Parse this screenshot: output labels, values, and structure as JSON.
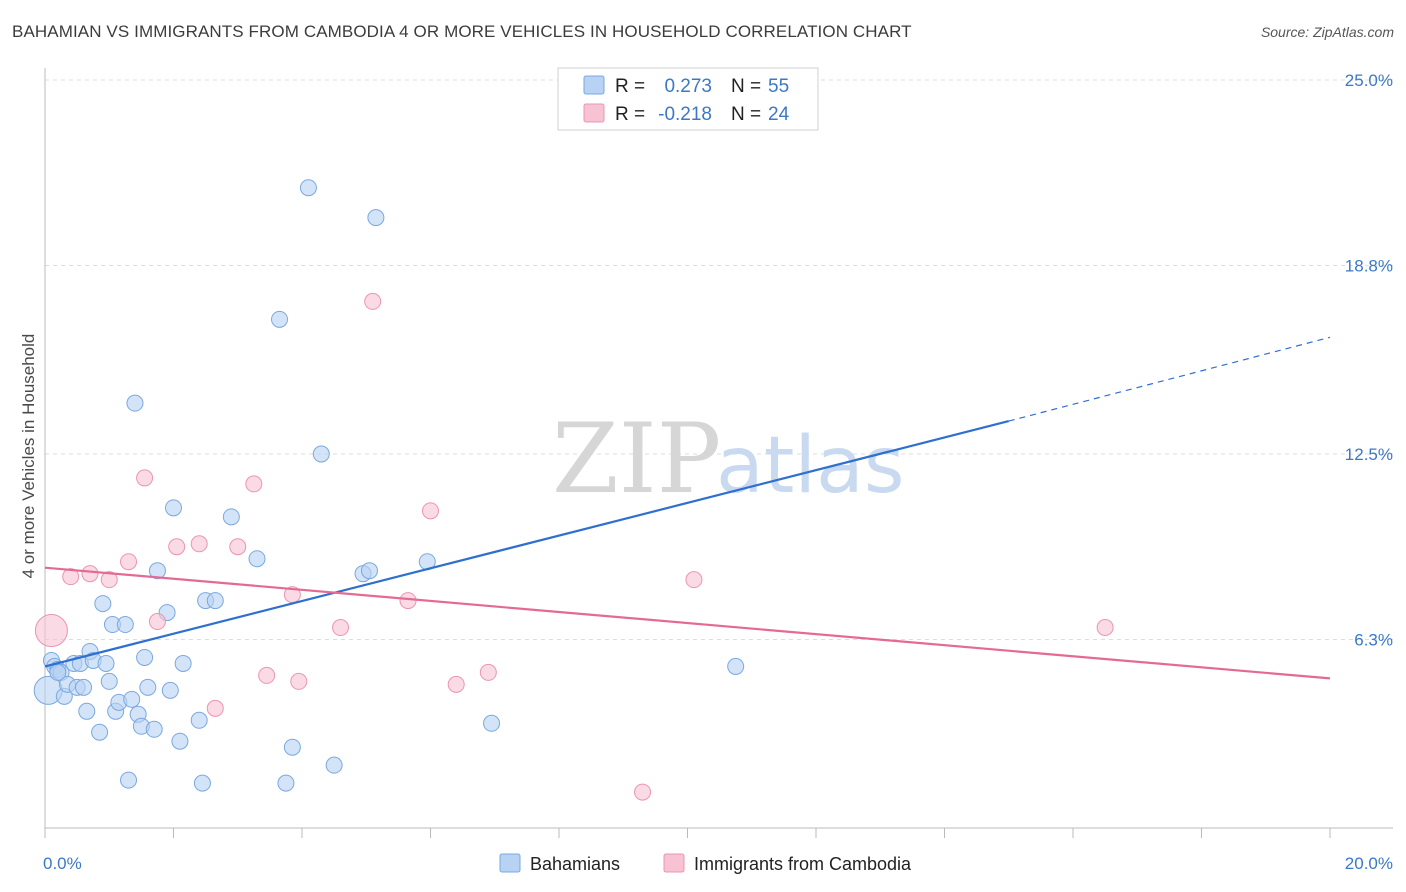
{
  "title": "BAHAMIAN VS IMMIGRANTS FROM CAMBODIA 4 OR MORE VEHICLES IN HOUSEHOLD CORRELATION CHART",
  "source": "Source: ZipAtlas.com",
  "watermark": {
    "zip": "ZIP",
    "atlas": "atlas"
  },
  "colors": {
    "blue_fill": "#b8d2f3",
    "blue_stroke": "#7aa8df",
    "blue_line": "#2f6fcf",
    "pink_fill": "#f7c3d3",
    "pink_stroke": "#ec94b1",
    "pink_line": "#e46a95",
    "tick_text": "#3b78c8",
    "grid": "#dddddd"
  },
  "chart_data": {
    "type": "scatter",
    "xlabel": "",
    "ylabel": "4 or more Vehicles in Household",
    "xlim": [
      0,
      20
    ],
    "ylim": [
      0,
      25
    ],
    "x_tick_labels": [
      {
        "value": 0,
        "label": "0.0%"
      },
      {
        "value": 20,
        "label": "20.0%"
      }
    ],
    "y_tick_labels": [
      {
        "value": 6.3,
        "label": "6.3%"
      },
      {
        "value": 12.5,
        "label": "12.5%"
      },
      {
        "value": 18.8,
        "label": "18.8%"
      },
      {
        "value": 25.0,
        "label": "25.0%"
      }
    ],
    "legend": {
      "r_label": "R =",
      "n_label": "N =",
      "entries": [
        {
          "name": "Bahamians",
          "r": "0.273",
          "n": "55"
        },
        {
          "name": "Immigrants from Cambodia",
          "r": "-0.218",
          "n": "24"
        }
      ]
    },
    "series": [
      {
        "name": "Bahamians",
        "color_key": "blue",
        "points": [
          [
            0.05,
            4.6,
            14
          ],
          [
            0.1,
            5.6,
            8
          ],
          [
            0.15,
            5.4,
            8
          ],
          [
            0.2,
            5.3,
            8
          ],
          [
            0.25,
            5.2,
            8
          ],
          [
            0.3,
            4.4,
            8
          ],
          [
            0.35,
            4.8,
            8
          ],
          [
            0.45,
            5.5,
            8
          ],
          [
            0.5,
            4.7,
            8
          ],
          [
            0.55,
            5.5,
            8
          ],
          [
            0.6,
            4.7,
            8
          ],
          [
            0.65,
            3.9,
            8
          ],
          [
            0.7,
            5.9,
            8
          ],
          [
            0.75,
            5.6,
            8
          ],
          [
            0.85,
            3.2,
            8
          ],
          [
            0.9,
            7.5,
            8
          ],
          [
            0.95,
            5.5,
            8
          ],
          [
            1.0,
            4.9,
            8
          ],
          [
            1.05,
            6.8,
            8
          ],
          [
            1.1,
            3.9,
            8
          ],
          [
            1.15,
            4.2,
            8
          ],
          [
            1.25,
            6.8,
            8
          ],
          [
            1.3,
            1.6,
            8
          ],
          [
            1.35,
            4.3,
            8
          ],
          [
            1.4,
            14.2,
            8
          ],
          [
            1.45,
            3.8,
            8
          ],
          [
            1.5,
            3.4,
            8
          ],
          [
            1.55,
            5.7,
            8
          ],
          [
            1.6,
            4.7,
            8
          ],
          [
            1.7,
            3.3,
            8
          ],
          [
            1.75,
            8.6,
            8
          ],
          [
            1.9,
            7.2,
            8
          ],
          [
            1.95,
            4.6,
            8
          ],
          [
            2.0,
            10.7,
            8
          ],
          [
            2.1,
            2.9,
            8
          ],
          [
            2.15,
            5.5,
            8
          ],
          [
            2.4,
            3.6,
            8
          ],
          [
            2.45,
            1.5,
            8
          ],
          [
            2.5,
            7.6,
            8
          ],
          [
            2.65,
            7.6,
            8
          ],
          [
            2.9,
            10.4,
            8
          ],
          [
            3.3,
            9.0,
            8
          ],
          [
            3.65,
            17.0,
            8
          ],
          [
            3.75,
            1.5,
            8
          ],
          [
            3.85,
            2.7,
            8
          ],
          [
            4.1,
            21.4,
            8
          ],
          [
            4.3,
            12.5,
            8
          ],
          [
            4.5,
            2.1,
            8
          ],
          [
            4.95,
            8.5,
            8
          ],
          [
            5.05,
            8.6,
            8
          ],
          [
            5.15,
            20.4,
            8
          ],
          [
            5.95,
            8.9,
            8
          ],
          [
            6.95,
            3.5,
            8
          ],
          [
            10.75,
            5.4,
            8
          ],
          [
            0.2,
            5.2,
            8
          ]
        ],
        "trend": {
          "x0": 0,
          "y0": 5.4,
          "x1": 15.0,
          "y1": 13.6,
          "x_dash_end": 20.0,
          "y_dash_end": 16.4
        }
      },
      {
        "name": "Immigrants from Cambodia",
        "color_key": "pink",
        "points": [
          [
            0.1,
            6.6,
            16
          ],
          [
            0.4,
            8.4,
            8
          ],
          [
            0.7,
            8.5,
            8
          ],
          [
            1.0,
            8.3,
            8
          ],
          [
            1.3,
            8.9,
            8
          ],
          [
            1.55,
            11.7,
            8
          ],
          [
            1.75,
            6.9,
            8
          ],
          [
            2.05,
            9.4,
            8
          ],
          [
            2.4,
            9.5,
            8
          ],
          [
            2.65,
            4.0,
            8
          ],
          [
            3.0,
            9.4,
            8
          ],
          [
            3.25,
            11.5,
            8
          ],
          [
            3.45,
            5.1,
            8
          ],
          [
            3.85,
            7.8,
            8
          ],
          [
            3.95,
            4.9,
            8
          ],
          [
            4.6,
            6.7,
            8
          ],
          [
            5.1,
            17.6,
            8
          ],
          [
            5.65,
            7.6,
            8
          ],
          [
            6.0,
            10.6,
            8
          ],
          [
            6.4,
            4.8,
            8
          ],
          [
            6.9,
            5.2,
            8
          ],
          [
            9.3,
            1.2,
            8
          ],
          [
            10.1,
            8.3,
            8
          ],
          [
            16.5,
            6.7,
            8
          ]
        ],
        "trend": {
          "x0": 0,
          "y0": 8.7,
          "x1": 20.0,
          "y1": 5.0
        }
      }
    ]
  }
}
